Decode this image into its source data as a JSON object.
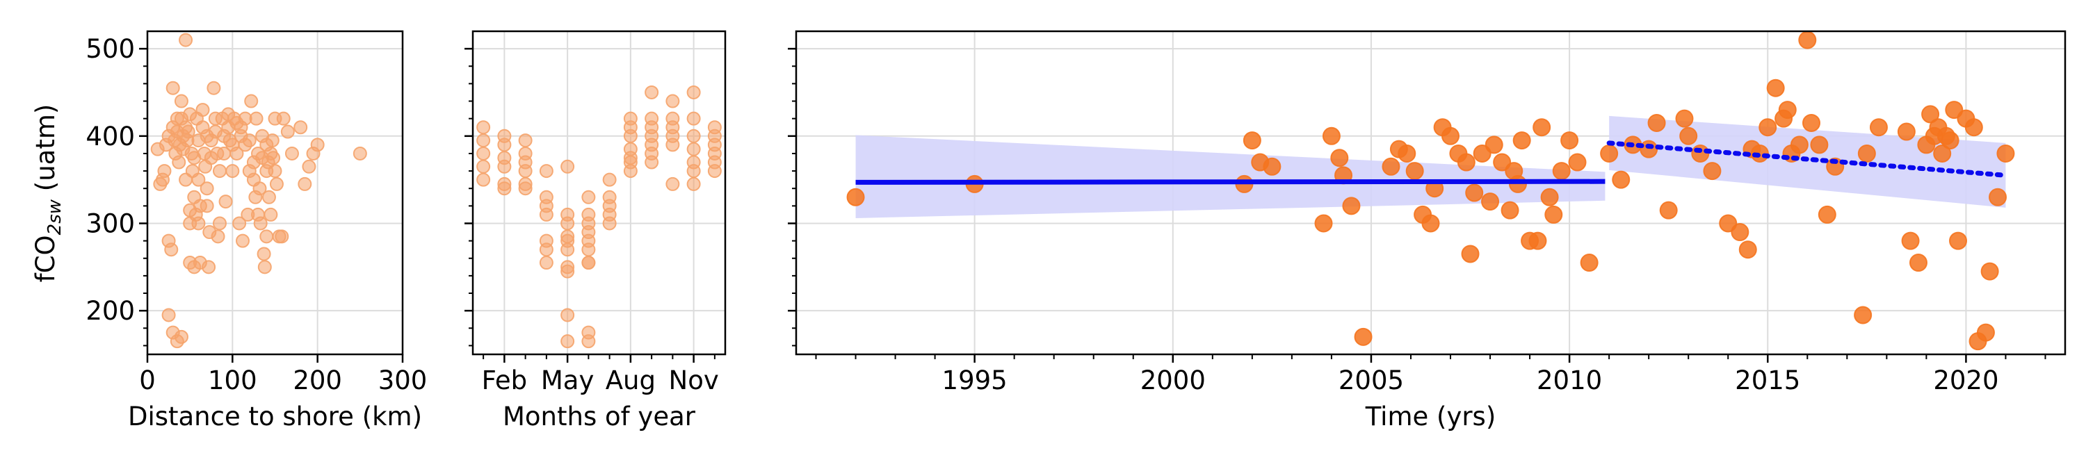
{
  "chart_data": [
    {
      "type": "scatter",
      "xlabel": "Distance to shore (km)",
      "ylabel_main": "fCO",
      "ylabel_sub": "2sw",
      "ylabel_unit": " (uatm)",
      "xlim": [
        0,
        300
      ],
      "ylim": [
        150,
        520
      ],
      "xticks": [
        0,
        100,
        200,
        300
      ],
      "yticks": [
        200,
        300,
        400,
        500
      ],
      "grid": true,
      "color": "#f5a36a",
      "x": [
        12,
        15,
        18,
        20,
        22,
        25,
        25,
        28,
        30,
        30,
        32,
        33,
        35,
        35,
        37,
        38,
        40,
        40,
        42,
        42,
        45,
        45,
        47,
        48,
        50,
        50,
        50,
        52,
        53,
        55,
        55,
        57,
        58,
        60,
        60,
        60,
        62,
        62,
        65,
        65,
        67,
        68,
        70,
        70,
        70,
        72,
        73,
        75,
        75,
        78,
        80,
        80,
        82,
        83,
        85,
        85,
        88,
        90,
        90,
        92,
        95,
        95,
        97,
        100,
        100,
        102,
        105,
        105,
        108,
        110,
        110,
        112,
        115,
        115,
        118,
        120,
        120,
        122,
        125,
        125,
        127,
        128,
        130,
        130,
        132,
        133,
        135,
        135,
        137,
        138,
        140,
        140,
        140,
        142,
        143,
        145,
        145,
        147,
        148,
        150,
        150,
        152,
        155,
        158,
        160,
        165,
        170,
        180,
        185,
        190,
        195,
        200,
        250,
        25,
        30,
        35,
        40,
        45,
        50,
        55
      ],
      "y": [
        385,
        345,
        350,
        360,
        390,
        400,
        280,
        270,
        455,
        410,
        395,
        380,
        420,
        405,
        370,
        390,
        440,
        420,
        400,
        385,
        350,
        410,
        395,
        405,
        425,
        300,
        315,
        380,
        360,
        375,
        330,
        310,
        420,
        395,
        350,
        300,
        255,
        320,
        430,
        410,
        380,
        365,
        400,
        340,
        320,
        250,
        290,
        395,
        375,
        455,
        420,
        405,
        380,
        285,
        360,
        300,
        420,
        400,
        380,
        325,
        425,
        410,
        395,
        360,
        390,
        420,
        415,
        380,
        300,
        410,
        400,
        280,
        390,
        420,
        310,
        360,
        395,
        440,
        370,
        350,
        330,
        420,
        380,
        310,
        340,
        300,
        400,
        375,
        265,
        250,
        390,
        360,
        285,
        370,
        330,
        310,
        380,
        395,
        375,
        420,
        360,
        345,
        285,
        285,
        420,
        405,
        380,
        410,
        345,
        365,
        380,
        390,
        380,
        195,
        175,
        165,
        170,
        510,
        255,
        250
      ]
    },
    {
      "type": "scatter",
      "xlabel": "Months of year",
      "xlim": [
        0.5,
        12.5
      ],
      "ylim": [
        150,
        520
      ],
      "xticks": [
        2,
        5,
        8,
        11
      ],
      "xticklabels": [
        "Feb",
        "May",
        "Aug",
        "Nov"
      ],
      "minor_xticks": [
        1,
        2,
        3,
        4,
        5,
        6,
        7,
        8,
        9,
        10,
        11,
        12
      ],
      "grid": true,
      "color": "#f5a36a",
      "x": [
        1,
        1,
        1,
        1,
        1,
        2,
        2,
        2,
        2,
        2,
        2,
        3,
        3,
        3,
        3,
        3,
        3,
        4,
        4,
        4,
        4,
        4,
        4,
        4,
        5,
        5,
        5,
        5,
        5,
        5,
        5,
        5,
        5,
        5,
        6,
        6,
        6,
        6,
        6,
        6,
        6,
        6,
        6,
        6,
        7,
        7,
        7,
        7,
        7,
        8,
        8,
        8,
        8,
        8,
        8,
        8,
        9,
        9,
        9,
        9,
        9,
        9,
        9,
        10,
        10,
        10,
        10,
        10,
        10,
        11,
        11,
        11,
        11,
        11,
        11,
        11,
        12,
        12,
        12,
        12,
        12,
        12
      ],
      "y": [
        410,
        395,
        380,
        365,
        350,
        400,
        390,
        375,
        365,
        345,
        340,
        395,
        380,
        370,
        360,
        345,
        340,
        360,
        330,
        320,
        310,
        280,
        270,
        255,
        365,
        310,
        300,
        285,
        280,
        270,
        250,
        245,
        195,
        165,
        330,
        310,
        300,
        290,
        280,
        270,
        255,
        255,
        175,
        165,
        350,
        330,
        320,
        310,
        300,
        420,
        410,
        400,
        385,
        375,
        370,
        360,
        450,
        420,
        410,
        400,
        390,
        380,
        370,
        440,
        420,
        410,
        400,
        390,
        345,
        450,
        420,
        400,
        385,
        370,
        360,
        345,
        410,
        400,
        390,
        380,
        370,
        360
      ]
    },
    {
      "type": "scatter",
      "xlabel": "Time (yrs)",
      "xlim": [
        1990.5,
        2022.5
      ],
      "ylim": [
        150,
        520
      ],
      "xticks": [
        1995,
        2000,
        2005,
        2010,
        2015,
        2020
      ],
      "grid": true,
      "color": "#f5741e",
      "x": [
        1992,
        1995,
        2001.8,
        2002,
        2002.2,
        2002.5,
        2003.8,
        2004,
        2004.2,
        2004.3,
        2004.5,
        2004.8,
        2005.5,
        2005.7,
        2005.9,
        2006.1,
        2006.3,
        2006.5,
        2006.6,
        2006.8,
        2007,
        2007.2,
        2007.4,
        2007.5,
        2007.6,
        2007.8,
        2008,
        2008.1,
        2008.3,
        2008.5,
        2008.6,
        2008.7,
        2008.8,
        2009,
        2009.2,
        2009.3,
        2009.5,
        2009.6,
        2009.8,
        2010,
        2010.2,
        2010.5,
        2011,
        2011.3,
        2011.6,
        2012,
        2012.2,
        2012.5,
        2012.9,
        2013,
        2013.3,
        2013.6,
        2014,
        2014.3,
        2014.5,
        2014.6,
        2014.8,
        2015,
        2015.2,
        2015.4,
        2015.5,
        2015.6,
        2015.8,
        2016,
        2016.1,
        2016.3,
        2016.5,
        2016.7,
        2017.4,
        2017.5,
        2017.8,
        2018.5,
        2018.6,
        2018.8,
        2019,
        2019.1,
        2019.2,
        2019.3,
        2019.4,
        2019.5,
        2019.6,
        2019.8,
        2020,
        2020.3,
        2020.5,
        2020.6,
        2020.8,
        2021,
        2020.2,
        2019.7
      ],
      "y": [
        330,
        345,
        345,
        395,
        370,
        365,
        300,
        400,
        375,
        355,
        320,
        170,
        365,
        385,
        380,
        360,
        310,
        300,
        340,
        410,
        400,
        380,
        370,
        265,
        335,
        380,
        325,
        390,
        370,
        315,
        360,
        345,
        395,
        280,
        280,
        410,
        330,
        310,
        360,
        395,
        370,
        255,
        380,
        350,
        390,
        385,
        415,
        315,
        420,
        400,
        380,
        360,
        300,
        290,
        270,
        385,
        380,
        410,
        455,
        420,
        430,
        380,
        390,
        510,
        415,
        390,
        310,
        365,
        195,
        380,
        410,
        405,
        280,
        255,
        390,
        425,
        400,
        410,
        380,
        400,
        395,
        280,
        420,
        165,
        175,
        245,
        330,
        380,
        410,
        430
      ]
    }
  ],
  "trend_series": [
    {
      "x": [
        1992,
        2010.9
      ],
      "y": [
        347,
        348
      ],
      "style": "solid",
      "color": "#0a0aee"
    },
    {
      "x": [
        2011,
        2021
      ],
      "y": [
        392,
        355
      ],
      "style": "dotted",
      "color": "#0a0aee"
    }
  ],
  "confidence_bands": [
    {
      "x": [
        1992,
        2010.9
      ],
      "upper": [
        401,
        359
      ],
      "lower": [
        306,
        326
      ],
      "color": "#d4d4fb"
    },
    {
      "x": [
        2011,
        2021
      ],
      "upper": [
        423,
        392
      ],
      "lower": [
        361,
        318
      ],
      "color": "#d4d4fb"
    }
  ]
}
